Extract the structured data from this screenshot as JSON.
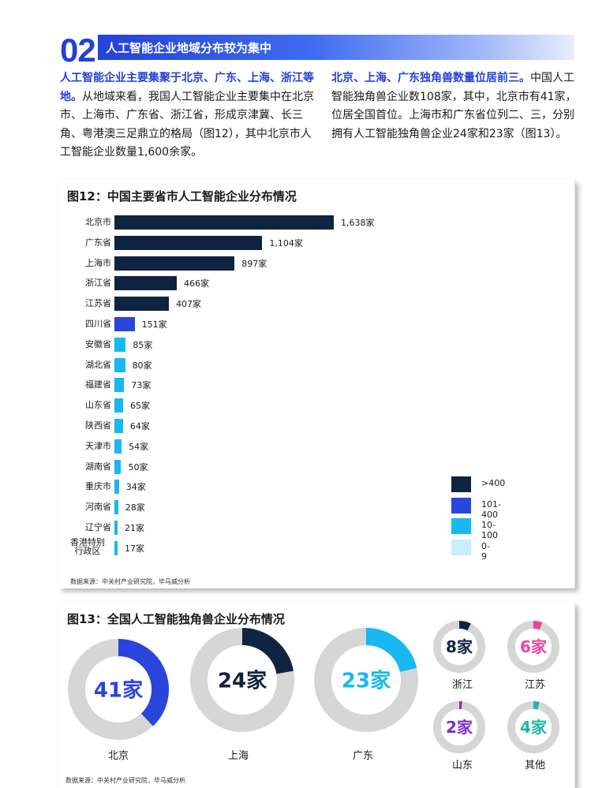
{
  "section": {
    "number": "02",
    "title": "人工智能企业地域分布较为集中"
  },
  "para_left": {
    "highlight": "人工智能企业主要集聚于北京、广东、上海、浙江等地。",
    "text": "从地域来看，我国人工智能企业主要集中在北京市、上海市、广东省、浙江省，形成京津冀、长三角、粤港澳三足鼎立的格局（图12），其中北京市人工智能企业数量1,600余家。"
  },
  "para_right": {
    "highlight": "北京、上海、广东独角兽数量位居前三。",
    "text": "中国人工智能独角兽企业数108家，其中，北京市有41家，位居全国首位。上海市和广东省位列二、三，分别拥有人工智能独角兽企业24家和23家（图13）。"
  },
  "colors": {
    "over400": "#0f2440",
    "r101_400": "#2a45db",
    "r10_100": "#18b8f0",
    "r0_9": "#c9eefb",
    "accent": "#2440d6",
    "donut_gray": "#d6d6d6",
    "jiangsu": "#e8479a",
    "shandong": "#7a30c9",
    "other": "#1fb5a8"
  },
  "fig12": {
    "title": "图12：中国主要省市人工智能企业分布情况",
    "source": "数据来源：中关村产业研究院，毕马威分析",
    "legend": [
      {
        "label": ">400",
        "color_key": "over400"
      },
      {
        "label": "101-400",
        "color_key": "r101_400"
      },
      {
        "label": "10-100",
        "color_key": "r10_100"
      },
      {
        "label": "0-9",
        "color_key": "r0_9"
      }
    ]
  },
  "fig13": {
    "title": "图13：全国人工智能独角兽企业分布情况",
    "source": "数据来源：中关村产业研究院，毕马威分析"
  },
  "chart_data": [
    {
      "type": "bar",
      "orientation": "horizontal",
      "title": "图12：中国主要省市人工智能企业分布情况",
      "unit": "家",
      "categories": [
        "北京市",
        "广东省",
        "上海市",
        "浙江省",
        "江苏省",
        "四川省",
        "安徽省",
        "湖北省",
        "福建省",
        "山东省",
        "陕西省",
        "天津市",
        "湖南省",
        "重庆市",
        "河南省",
        "辽宁省",
        "香港特别行政区"
      ],
      "values": [
        1638,
        1104,
        897,
        466,
        407,
        151,
        85,
        80,
        73,
        65,
        64,
        54,
        50,
        34,
        28,
        21,
        17
      ],
      "value_labels": [
        "1,638家",
        "1,104家",
        "897家",
        "466家",
        "407家",
        "151家",
        "85家",
        "80家",
        "73家",
        "65家",
        "64家",
        "54家",
        "50家",
        "34家",
        "28家",
        "21家",
        "17家"
      ],
      "label_lines": [
        [
          "北京市"
        ],
        [
          "广东省"
        ],
        [
          "上海市"
        ],
        [
          "浙江省"
        ],
        [
          "江苏省"
        ],
        [
          "四川省"
        ],
        [
          "安徽省"
        ],
        [
          "湖北省"
        ],
        [
          "福建省"
        ],
        [
          "山东省"
        ],
        [
          "陕西省"
        ],
        [
          "天津市"
        ],
        [
          "湖南省"
        ],
        [
          "重庆市"
        ],
        [
          "河南省"
        ],
        [
          "辽宁省"
        ],
        [
          "香港特别",
          "行政区"
        ]
      ],
      "legend": [
        ">400",
        "101-400",
        "10-100",
        "0-9"
      ],
      "xlim": [
        0,
        1638
      ]
    },
    {
      "type": "pie",
      "style": "donut",
      "title": "图13：全国人工智能独角兽企业分布情况",
      "total": 108,
      "items": [
        {
          "name": "北京",
          "value": 41,
          "label": "41家",
          "color_key": "r101_400"
        },
        {
          "name": "上海",
          "value": 24,
          "label": "24家",
          "color_key": "over400"
        },
        {
          "name": "广东",
          "value": 23,
          "label": "23家",
          "color_key": "r10_100"
        },
        {
          "name": "浙江",
          "value": 8,
          "label": "8家",
          "color_key": "over400"
        },
        {
          "name": "江苏",
          "value": 6,
          "label": "6家",
          "color_key": "jiangsu"
        },
        {
          "name": "山东",
          "value": 2,
          "label": "2家",
          "color_key": "shandong"
        },
        {
          "name": "其他",
          "value": 4,
          "label": "4家",
          "color_key": "other"
        }
      ]
    }
  ]
}
